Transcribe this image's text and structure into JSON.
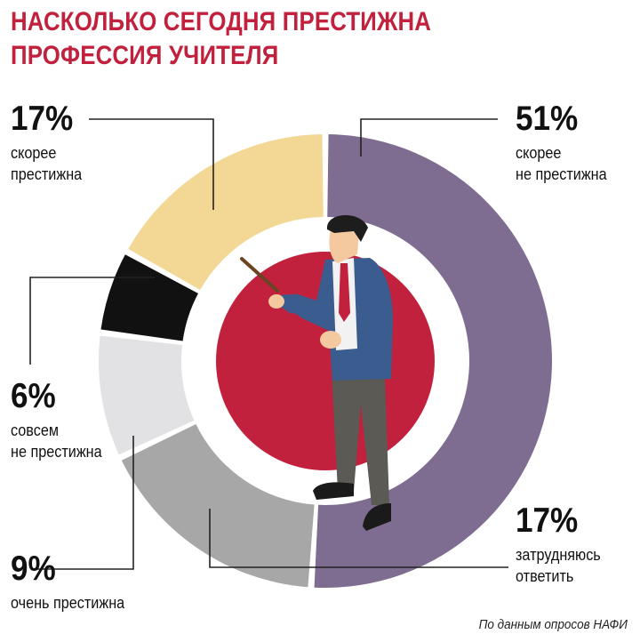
{
  "title_lines": [
    "НАСКОЛЬКО СЕГОДНЯ ПРЕСТИЖНА",
    "ПРОФЕССИЯ УЧИТЕЛЯ"
  ],
  "source": "По данным опросов НАФИ",
  "colors": {
    "title": "#c1213d",
    "inner_circle": "#c1213d",
    "not_prestigious": "#7e6d90",
    "hard_to_say": "#a7a7a7",
    "very_prestigious": "#e2e2e4",
    "not_at_all": "#111111",
    "rather_prestigious": "#f3d895"
  },
  "labels": {
    "not_prestigious": {
      "pct": "51%",
      "lines": [
        "скорее",
        "не престижна"
      ]
    },
    "hard_to_say": {
      "pct": "17%",
      "lines": [
        "затрудняюсь",
        "ответить"
      ]
    },
    "very_prestigious": {
      "pct": "9%",
      "lines": [
        "очень престижна"
      ]
    },
    "not_at_all": {
      "pct": "6%",
      "lines": [
        "совсем",
        "не престижна"
      ]
    },
    "rather_prestigious": {
      "pct": "17%",
      "lines": [
        "скорее",
        "престижна"
      ]
    }
  },
  "chart_data": {
    "type": "pie",
    "title": "НАСКОЛЬКО СЕГОДНЯ ПРЕСТИЖНА ПРОФЕССИЯ УЧИТЕЛЯ",
    "categories": [
      "скорее не престижна",
      "затрудняюсь ответить",
      "очень престижна",
      "совсем не престижна",
      "скорее престижна"
    ],
    "values": [
      51,
      17,
      9,
      6,
      17
    ],
    "unit": "%",
    "donut": true,
    "direction": "clockwise from top"
  }
}
